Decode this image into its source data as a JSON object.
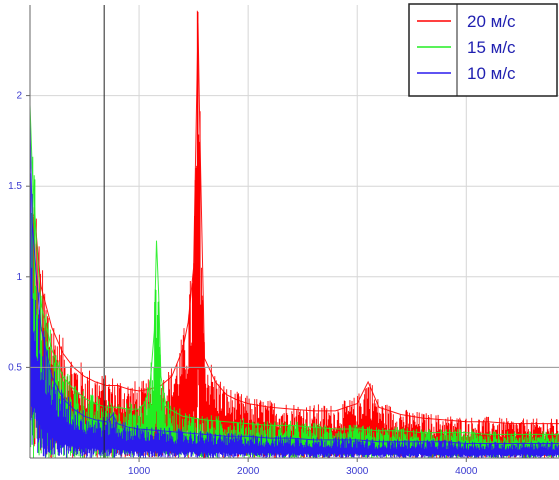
{
  "chart_data": {
    "type": "line",
    "title": "",
    "xlabel": "",
    "ylabel": "",
    "xlim": [
      0,
      4850
    ],
    "ylim": [
      0,
      2.5
    ],
    "x_ticks": [
      {
        "value": 1000,
        "label": "1000"
      },
      {
        "value": 2000,
        "label": "2000"
      },
      {
        "value": 3000,
        "label": "3000"
      },
      {
        "value": 4000,
        "label": "4000"
      }
    ],
    "y_ticks": [
      {
        "value": 0.5,
        "label": "0.5"
      },
      {
        "value": 1,
        "label": "1"
      },
      {
        "value": 1.5,
        "label": "1.5"
      },
      {
        "value": 2,
        "label": "2"
      }
    ],
    "grid": true,
    "cursor_x": 680,
    "cursor_y": 0.5,
    "legend_position": "top-right",
    "series": [
      {
        "name": "20 м/с",
        "color": "#ff0000",
        "x": [
          0,
          40,
          100,
          200,
          300,
          400,
          500,
          600,
          700,
          800,
          900,
          1000,
          1100,
          1200,
          1300,
          1400,
          1450,
          1500,
          1540,
          1560,
          1600,
          1700,
          1800,
          1900,
          2000,
          2200,
          2400,
          2600,
          2800,
          3000,
          3100,
          3200,
          3400,
          3600,
          3800,
          4000,
          4200,
          4400,
          4600,
          4850
        ],
        "y": [
          1.3,
          1.35,
          0.95,
          0.72,
          0.58,
          0.5,
          0.45,
          0.42,
          0.4,
          0.4,
          0.38,
          0.37,
          0.38,
          0.4,
          0.45,
          0.6,
          0.75,
          1.05,
          2.4,
          1.7,
          0.55,
          0.42,
          0.35,
          0.32,
          0.3,
          0.28,
          0.27,
          0.26,
          0.26,
          0.3,
          0.42,
          0.28,
          0.24,
          0.22,
          0.21,
          0.2,
          0.2,
          0.19,
          0.19,
          0.19
        ]
      },
      {
        "name": "15 м/с",
        "color": "#22ee22",
        "x": [
          0,
          20,
          60,
          100,
          200,
          300,
          400,
          500,
          600,
          700,
          800,
          900,
          1000,
          1050,
          1100,
          1140,
          1160,
          1180,
          1200,
          1250,
          1400,
          1600,
          1800,
          2000,
          2200,
          2400,
          2600,
          2800,
          3000,
          3200,
          3400,
          3600,
          3800,
          4000,
          4200,
          4400,
          4600,
          4850
        ],
        "y": [
          1.95,
          1.6,
          1.2,
          0.85,
          0.6,
          0.45,
          0.38,
          0.33,
          0.3,
          0.28,
          0.28,
          0.27,
          0.27,
          0.3,
          0.4,
          0.7,
          1.2,
          0.9,
          0.45,
          0.28,
          0.23,
          0.21,
          0.2,
          0.19,
          0.18,
          0.18,
          0.17,
          0.16,
          0.16,
          0.15,
          0.15,
          0.14,
          0.14,
          0.14,
          0.13,
          0.13,
          0.13,
          0.13
        ]
      },
      {
        "name": "10 м/с",
        "color": "#2a1aee",
        "x": [
          0,
          20,
          60,
          100,
          200,
          300,
          400,
          500,
          600,
          700,
          760,
          800,
          900,
          1000,
          1200,
          1400,
          1600,
          1800,
          2000,
          2200,
          2400,
          2600,
          2800,
          3000,
          3200,
          3400,
          3600,
          3800,
          4000,
          4200,
          4400,
          4600,
          4850
        ],
        "y": [
          1.85,
          1.3,
          1.0,
          0.72,
          0.45,
          0.33,
          0.27,
          0.23,
          0.21,
          0.2,
          0.24,
          0.19,
          0.17,
          0.16,
          0.15,
          0.14,
          0.13,
          0.12,
          0.12,
          0.11,
          0.11,
          0.1,
          0.1,
          0.1,
          0.09,
          0.09,
          0.09,
          0.09,
          0.08,
          0.08,
          0.08,
          0.08,
          0.08
        ]
      }
    ]
  }
}
